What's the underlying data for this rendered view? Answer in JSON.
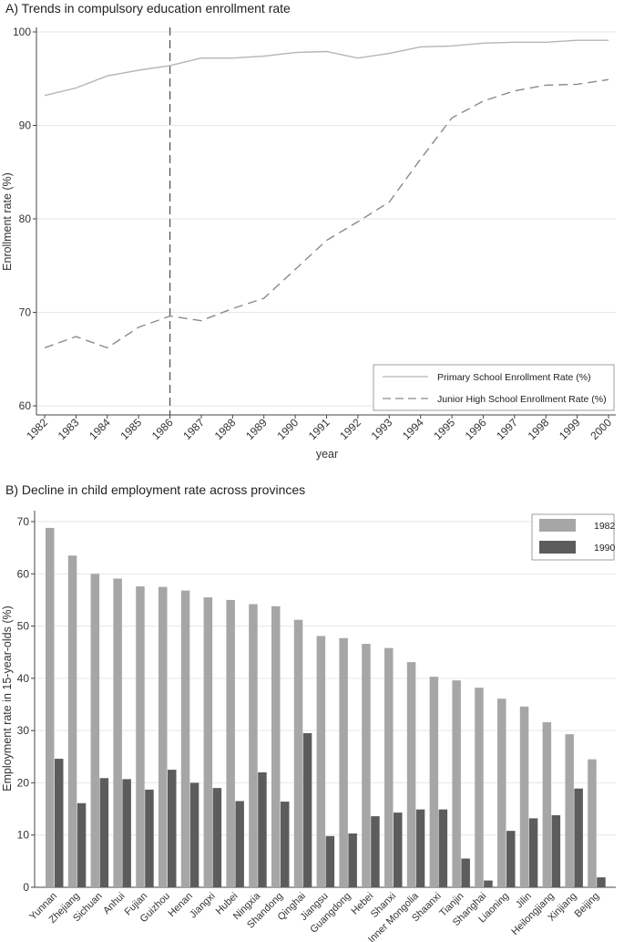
{
  "chart_data": [
    {
      "type": "line",
      "title": "A) Trends in compulsory education enrollment rate",
      "xlabel": "year",
      "ylabel": "Enrollment rate (%)",
      "ylim": [
        60,
        100
      ],
      "yticks": [
        "60",
        "70",
        "80",
        "90",
        "100"
      ],
      "grid": true,
      "reference_line_x": "1986",
      "legend_position": "bottom-right",
      "x": [
        "1982",
        "1983",
        "1984",
        "1985",
        "1986",
        "1987",
        "1988",
        "1989",
        "1990",
        "1991",
        "1992",
        "1993",
        "1994",
        "1995",
        "1996",
        "1997",
        "1998",
        "1999",
        "2000"
      ],
      "series": [
        {
          "name": "Primary School Enrollment Rate (%)",
          "style": "solid",
          "color": "#b5b5b5",
          "values": [
            93.2,
            94.0,
            95.3,
            95.9,
            96.4,
            97.2,
            97.2,
            97.4,
            97.8,
            97.9,
            97.2,
            97.7,
            98.4,
            98.5,
            98.8,
            98.9,
            98.9,
            99.1,
            99.1
          ]
        },
        {
          "name": "Junior High School Enrollment Rate (%)",
          "style": "dashed",
          "color": "#8a8a8a",
          "values": [
            66.2,
            67.4,
            66.2,
            68.4,
            69.6,
            69.1,
            70.4,
            71.5,
            74.6,
            77.7,
            79.7,
            81.8,
            86.4,
            90.8,
            92.6,
            93.7,
            94.3,
            94.4,
            94.9
          ]
        }
      ]
    },
    {
      "type": "bar",
      "title": "B) Decline in child employment rate across provinces",
      "xlabel": "",
      "ylabel": "Employment rate in 15-year-olds (%)",
      "ylim": [
        0,
        70
      ],
      "yticks": [
        "0",
        "10",
        "20",
        "30",
        "40",
        "50",
        "60",
        "70"
      ],
      "grid": true,
      "legend_position": "top-right",
      "categories": [
        "Yunnan",
        "Zhejiang",
        "Sichuan",
        "Anhui",
        "Fujian",
        "Guizhou",
        "Henan",
        "Jiangxi",
        "Hubei",
        "Ningxia",
        "Shandong",
        "Qinghai",
        "Jiangsu",
        "Guangdong",
        "Hebei",
        "Shanxi",
        "Inner Mongolia",
        "Shaanxi",
        "Tianjin",
        "Shanghai",
        "Liaoning",
        "Jilin",
        "Heilongjiang",
        "Xinjiang",
        "Beijing"
      ],
      "series": [
        {
          "name": "1982",
          "color": "#a6a6a6",
          "values": [
            68.8,
            63.5,
            60.0,
            59.1,
            57.6,
            57.5,
            56.8,
            55.5,
            55.0,
            54.2,
            53.8,
            51.2,
            48.1,
            47.7,
            46.6,
            45.8,
            43.1,
            40.3,
            39.6,
            38.2,
            36.1,
            34.6,
            31.6,
            29.3,
            24.5
          ]
        },
        {
          "name": "1990",
          "color": "#5c5c5c",
          "values": [
            24.6,
            16.1,
            20.9,
            20.7,
            18.7,
            22.5,
            20.0,
            19.0,
            16.5,
            22.0,
            16.4,
            29.5,
            9.8,
            10.3,
            13.6,
            14.3,
            14.9,
            14.9,
            5.5,
            1.3,
            10.8,
            13.2,
            13.8,
            18.9,
            1.9
          ]
        }
      ]
    }
  ]
}
